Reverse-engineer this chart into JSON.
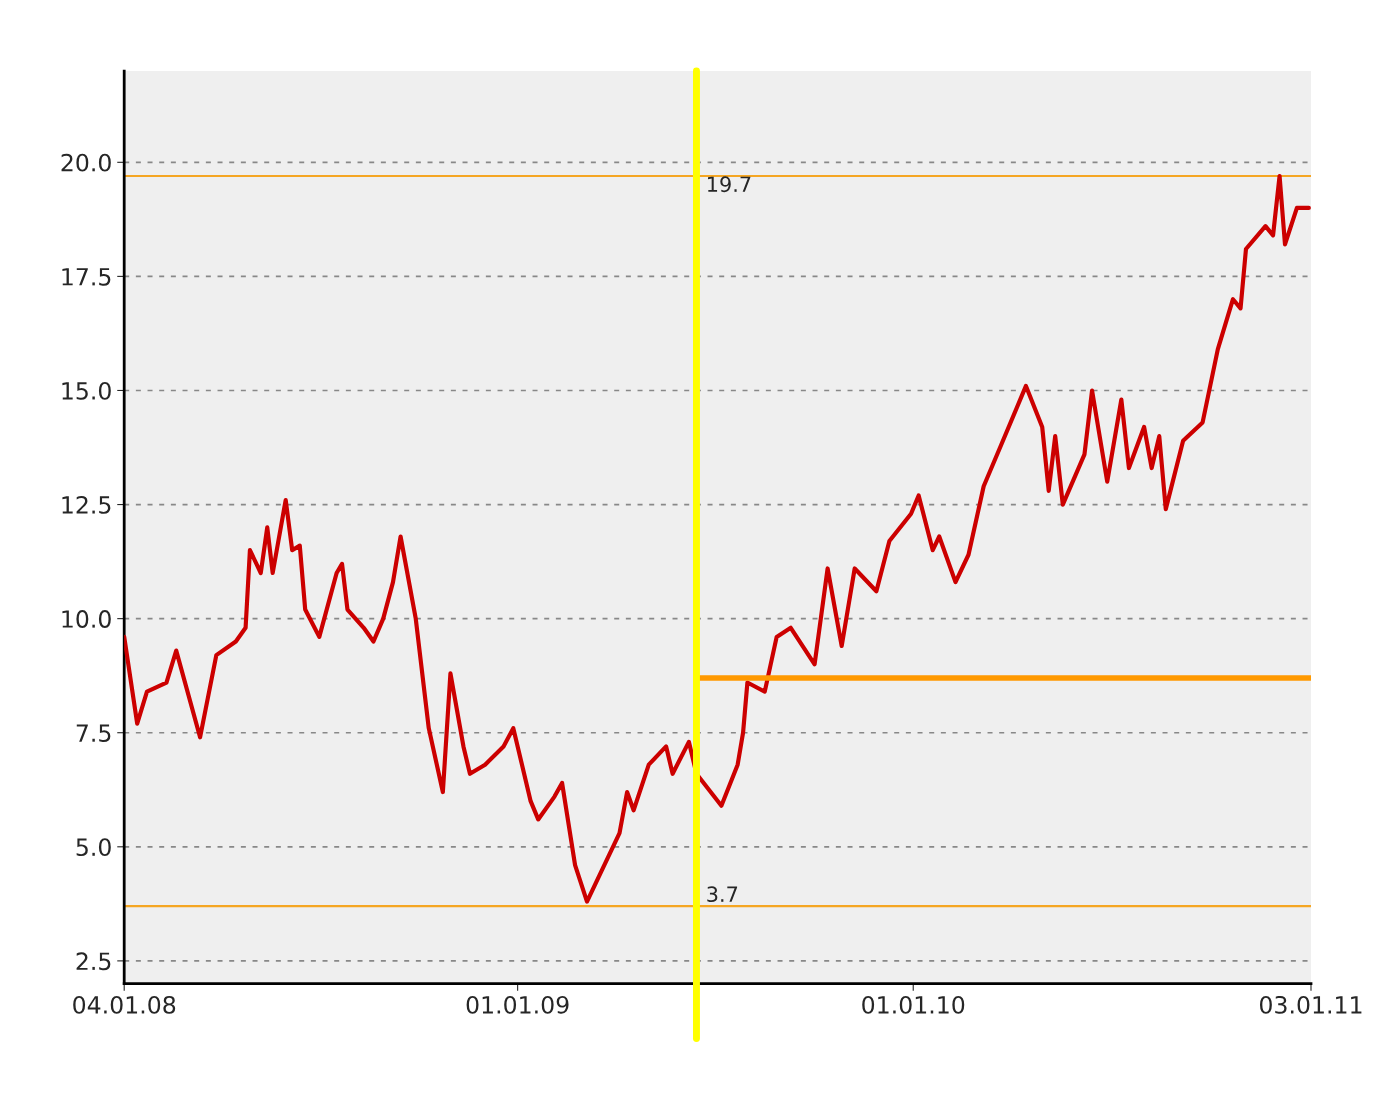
{
  "chart_data": {
    "type": "line",
    "xlim": [
      "2008-01-04",
      "2011-01-03"
    ],
    "xticks": [
      {
        "value": "2008-01-04",
        "label": "04.01.08"
      },
      {
        "value": "2009-01-01",
        "label": "01.01.09"
      },
      {
        "value": "2010-01-01",
        "label": "01.01.10"
      },
      {
        "value": "2011-01-03",
        "label": "03.01.11"
      }
    ],
    "ylim": [
      2.0,
      22.0
    ],
    "yticks": [
      {
        "value": 2.5,
        "label": "2.5"
      },
      {
        "value": 5,
        "label": "5.0"
      },
      {
        "value": 7.5,
        "label": "7.5"
      },
      {
        "value": 10,
        "label": "10.0"
      },
      {
        "value": 12.5,
        "label": "12.5"
      },
      {
        "value": 15,
        "label": "15.0"
      },
      {
        "value": 17.5,
        "label": "17.5"
      },
      {
        "value": 20,
        "label": "20.0"
      }
    ],
    "grid": "y",
    "series": [
      {
        "color": "#cc0000",
        "x": [
          "2008-01-04",
          "2008-01-16",
          "2008-01-25",
          "2008-02-12",
          "2008-02-21",
          "2008-03-14",
          "2008-03-29",
          "2008-04-16",
          "2008-04-25",
          "2008-04-29",
          "2008-05-09",
          "2008-05-15",
          "2008-05-20",
          "2008-06-01",
          "2008-06-07",
          "2008-06-14",
          "2008-06-19",
          "2008-07-02",
          "2008-07-18",
          "2008-07-23",
          "2008-07-28",
          "2008-08-12",
          "2008-08-21",
          "2008-08-30",
          "2008-09-08",
          "2008-09-15",
          "2008-09-29",
          "2008-10-11",
          "2008-10-24",
          "2008-10-31",
          "2008-11-12",
          "2008-11-18",
          "2008-12-02",
          "2008-12-19",
          "2008-12-28",
          "2009-01-13",
          "2009-01-20",
          "2009-02-04",
          "2009-02-11",
          "2009-02-23",
          "2009-03-06",
          "2009-03-20",
          "2009-04-05",
          "2009-04-12",
          "2009-04-18",
          "2009-05-02",
          "2009-05-18",
          "2009-05-24",
          "2009-06-08",
          "2009-06-15",
          "2009-07-08",
          "2009-07-23",
          "2009-07-28",
          "2009-08-01",
          "2009-08-17",
          "2009-08-28",
          "2009-09-10",
          "2009-10-02",
          "2009-10-14",
          "2009-10-27",
          "2009-11-08",
          "2009-11-28",
          "2009-12-10",
          "2009-12-30",
          "2010-01-06",
          "2010-01-19",
          "2010-01-25",
          "2010-02-09",
          "2010-02-21",
          "2010-03-07",
          "2010-03-23",
          "2010-04-15",
          "2010-04-30",
          "2010-05-06",
          "2010-05-12",
          "2010-05-19",
          "2010-06-08",
          "2010-06-15",
          "2010-06-29",
          "2010-07-12",
          "2010-07-19",
          "2010-08-02",
          "2010-08-09",
          "2010-08-16",
          "2010-08-22",
          "2010-09-07",
          "2010-09-25",
          "2010-10-09",
          "2010-10-23",
          "2010-10-30",
          "2010-11-04",
          "2010-11-22",
          "2010-11-29",
          "2010-12-05",
          "2010-12-10",
          "2010-12-21",
          "2011-01-01"
        ],
        "values": [
          9.6,
          7.7,
          8.4,
          8.6,
          9.3,
          7.4,
          9.2,
          9.5,
          9.8,
          11.5,
          11.0,
          12.0,
          11.0,
          12.6,
          11.5,
          11.6,
          10.2,
          9.6,
          11.0,
          11.2,
          10.2,
          9.8,
          9.5,
          10.0,
          10.8,
          11.8,
          10.0,
          7.6,
          6.2,
          8.8,
          7.2,
          6.6,
          6.8,
          7.2,
          7.6,
          6.0,
          5.6,
          6.1,
          6.4,
          4.6,
          3.8,
          4.5,
          5.3,
          6.2,
          5.8,
          6.8,
          7.2,
          6.6,
          7.3,
          6.6,
          5.9,
          6.8,
          7.5,
          8.6,
          8.4,
          9.6,
          9.8,
          9.0,
          11.1,
          9.4,
          11.1,
          10.6,
          11.7,
          12.3,
          12.7,
          11.5,
          11.8,
          10.8,
          11.4,
          12.9,
          13.8,
          15.1,
          14.2,
          12.8,
          14.0,
          12.5,
          13.6,
          15.0,
          13.0,
          14.8,
          13.3,
          14.2,
          13.3,
          14.0,
          12.4,
          13.9,
          14.3,
          15.9,
          17.0,
          16.8,
          18.1,
          18.6,
          18.4,
          19.7,
          18.2,
          19.0,
          19.0
        ]
      },
      {
        "color": "#ff9900",
        "x": [
          "2009-06-15",
          "2011-01-03"
        ],
        "values": [
          8.7,
          8.7
        ]
      }
    ],
    "ref_lines": [
      {
        "axis": "y",
        "value": 19.7,
        "label": "19.7",
        "color": "#f5a623"
      },
      {
        "axis": "y",
        "value": 3.7,
        "label": "3.7",
        "color": "#f5a623"
      },
      {
        "axis": "x",
        "value": "2009-06-15",
        "label": null,
        "color": "#ffff00"
      }
    ]
  }
}
